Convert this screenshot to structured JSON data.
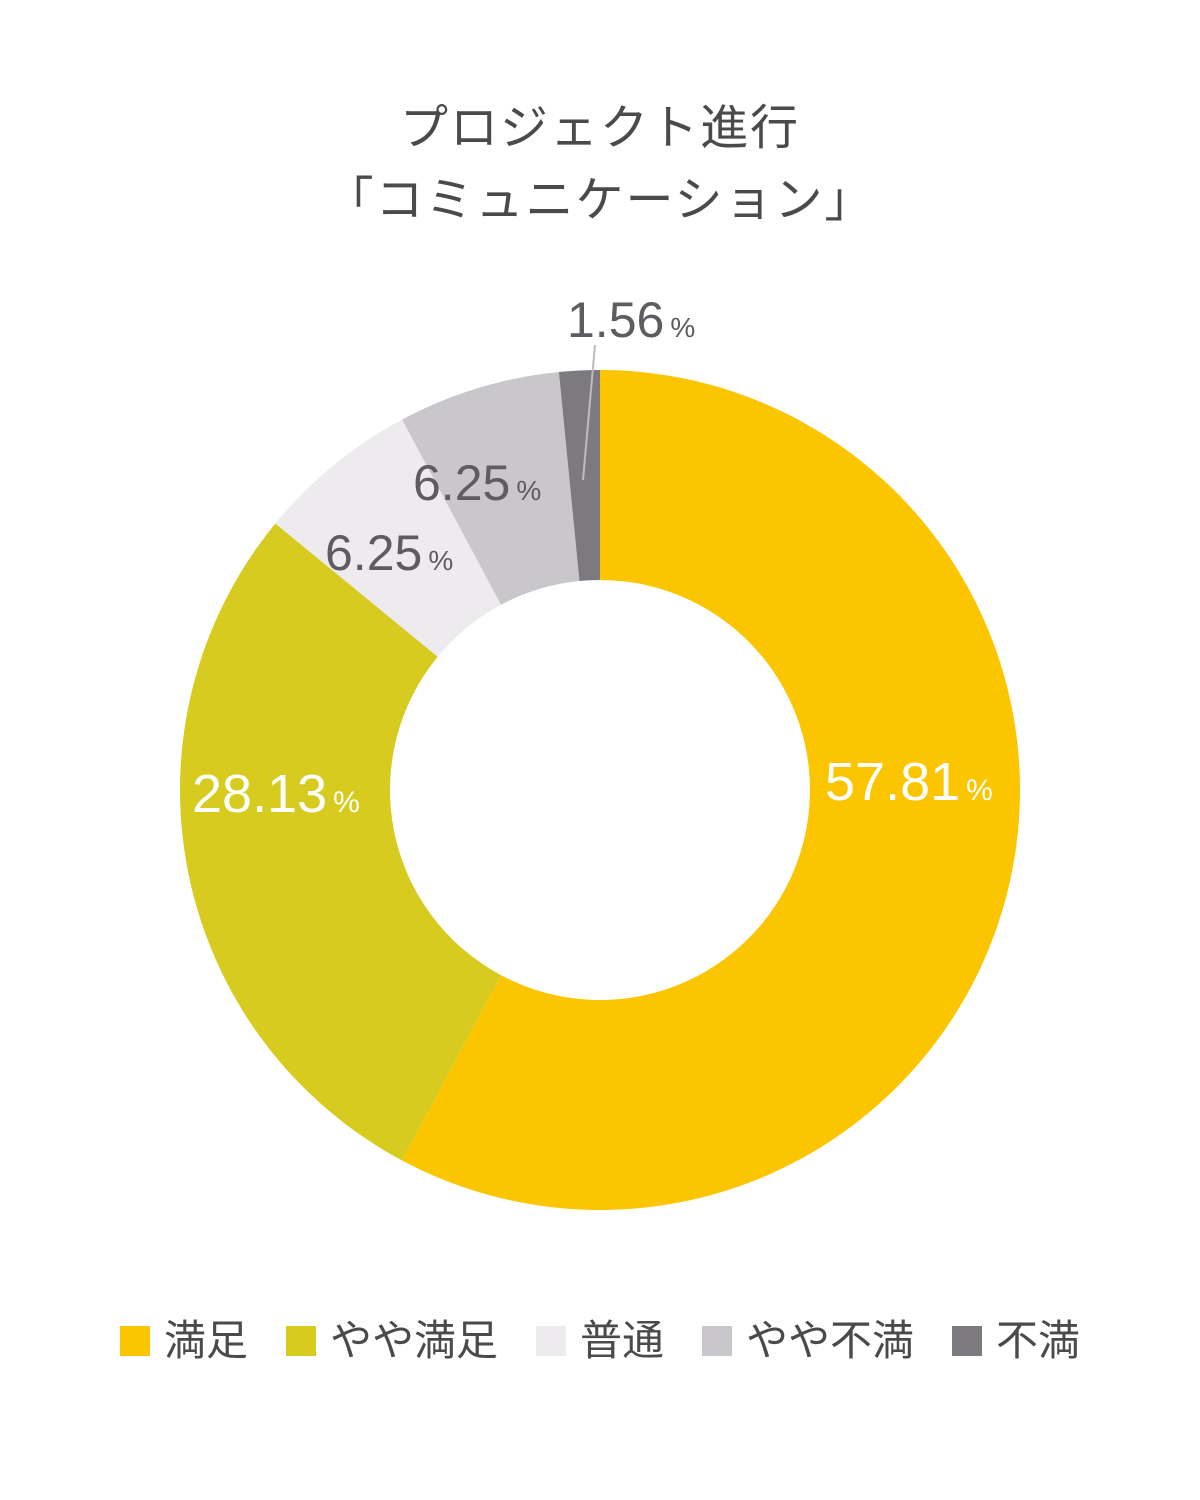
{
  "chart_data": {
    "type": "pie",
    "donut": true,
    "title_lines": [
      "プロジェクト進行",
      "「コミュニケーション」"
    ],
    "categories": [
      "満足",
      "やや満足",
      "普通",
      "やや不満",
      "不満"
    ],
    "values": [
      57.81,
      28.13,
      6.25,
      6.25,
      1.56
    ],
    "labels": [
      "57.81",
      "28.13",
      "6.25",
      "6.25",
      "1.56"
    ],
    "unit": "%",
    "colors": [
      "#FBC500",
      "#D8CB1F",
      "#EDEBEE",
      "#C9C7CB",
      "#7C7A7E"
    ],
    "label_colors": [
      "#FFFFFF",
      "#FFFFFF",
      "#5E5C60",
      "#5E5C60",
      "#5E5C60"
    ],
    "legend_position": "bottom"
  }
}
